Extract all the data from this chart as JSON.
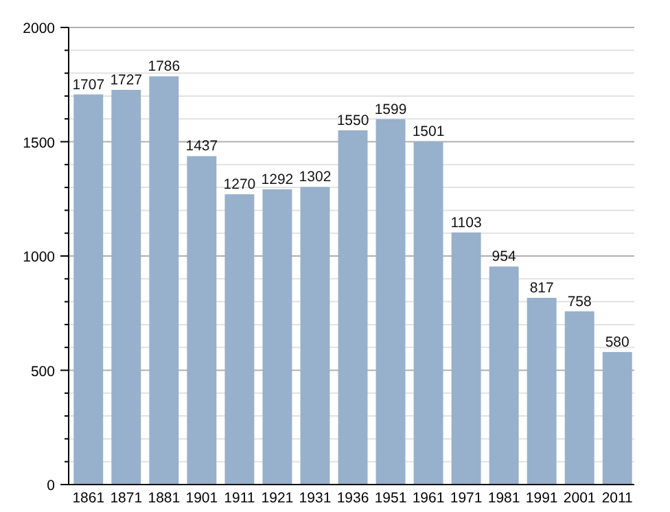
{
  "chart_data": {
    "type": "bar",
    "categories": [
      "1861",
      "1871",
      "1881",
      "1901",
      "1911",
      "1921",
      "1931",
      "1936",
      "1951",
      "1961",
      "1971",
      "1981",
      "1991",
      "2001",
      "2011"
    ],
    "values": [
      1707,
      1727,
      1786,
      1437,
      1270,
      1292,
      1302,
      1550,
      1599,
      1501,
      1103,
      954,
      817,
      758,
      580
    ],
    "color": "#97b0cc",
    "ylim": [
      0,
      2000
    ],
    "yticks": [
      0,
      {
        "value": 100,
        "label": null
      },
      {
        "value": 200,
        "label": null
      },
      {
        "value": 300,
        "label": null
      },
      {
        "value": 400,
        "label": null
      },
      500,
      {
        "value": 600,
        "label": null
      },
      {
        "value": 700,
        "label": null
      },
      {
        "value": 800,
        "label": null
      },
      {
        "value": 900,
        "label": null
      },
      1000,
      {
        "value": 1100,
        "label": null
      },
      {
        "value": 1200,
        "label": null
      },
      {
        "value": 1300,
        "label": null
      },
      {
        "value": 1400,
        "label": null
      },
      1500,
      {
        "value": 1600,
        "label": null
      },
      {
        "value": 1700,
        "label": null
      },
      {
        "value": 1800,
        "label": null
      },
      {
        "value": 1900,
        "label": null
      },
      2000
    ],
    "grid": true,
    "data_labels": true
  }
}
